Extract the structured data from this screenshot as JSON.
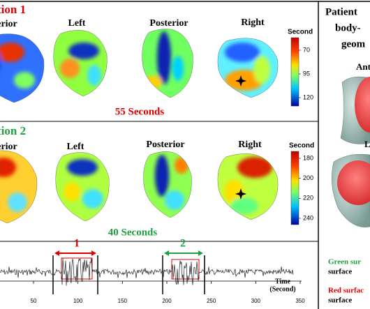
{
  "panel_1": {
    "title": "tion 1",
    "views": [
      "erior",
      "Left",
      "Posterior",
      "Right"
    ],
    "colorbar": {
      "title": "Second",
      "ticks": [
        70,
        95,
        120
      ]
    },
    "duration": "55 Seconds"
  },
  "panel_2": {
    "title": "tion 2",
    "views": [
      "erior",
      "Left",
      "Posterior",
      "Right"
    ],
    "colorbar": {
      "title": "Second",
      "ticks": [
        180,
        200,
        220,
        240
      ]
    },
    "duration": "40 Seconds"
  },
  "ecg": {
    "windows": [
      "1",
      "2"
    ],
    "axis_label": [
      "Time",
      "(Second)"
    ],
    "xticks": [
      50,
      100,
      150,
      200,
      250,
      300,
      350
    ]
  },
  "side_panel": {
    "title_lines": [
      "Patient",
      "body-",
      "geom"
    ],
    "views": [
      "Ant",
      "L"
    ],
    "legend": [
      {
        "label": "Green sur",
        "detail": "surface"
      },
      {
        "label": "Red surfac",
        "detail": "surface"
      }
    ]
  }
}
